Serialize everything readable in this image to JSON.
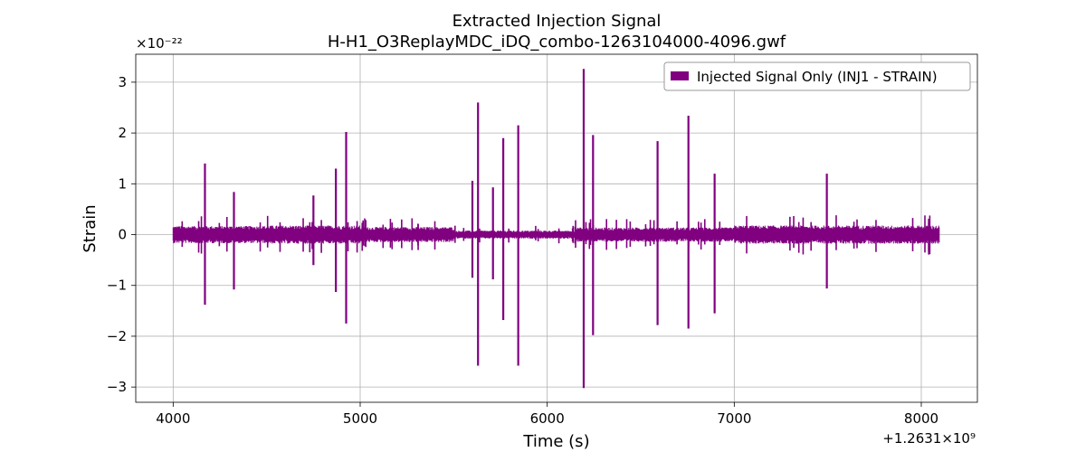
{
  "chart_data": {
    "type": "line",
    "title": "Extracted Injection Signal",
    "subtitle": "H-H1_O3ReplayMDC_iDQ_combo-1263104000-4096.gwf",
    "xlabel": "Time (s)",
    "ylabel": "Strain",
    "x_offset_label": "+1.2631×10⁹",
    "y_multiplier_label": "×10⁻²²",
    "xlim": [
      3800,
      8300
    ],
    "ylim": [
      -3.3,
      3.55
    ],
    "xticks": [
      4000,
      5000,
      6000,
      7000,
      8000
    ],
    "xtick_labels": [
      "4000",
      "5000",
      "6000",
      "7000",
      "8000"
    ],
    "yticks": [
      -3,
      -2,
      -1,
      0,
      1,
      2,
      3
    ],
    "ytick_labels": [
      "−3",
      "−2",
      "−1",
      "0",
      "1",
      "2",
      "3"
    ],
    "grid": true,
    "legend_position": "top-right",
    "series": [
      {
        "name": "Injected Signal Only (INJ1 - STRAIN)",
        "color": "#800080",
        "x_range": [
          4000,
          8096
        ],
        "baseline_envelope": [
          {
            "x_start": 4000,
            "x_end": 4500,
            "amplitude": 0.17
          },
          {
            "x_start": 4500,
            "x_end": 5000,
            "amplitude": 0.18
          },
          {
            "x_start": 5000,
            "x_end": 5500,
            "amplitude": 0.15
          },
          {
            "x_start": 5500,
            "x_end": 6150,
            "amplitude": 0.08
          },
          {
            "x_start": 6150,
            "x_end": 7000,
            "amplitude": 0.14
          },
          {
            "x_start": 7000,
            "x_end": 8096,
            "amplitude": 0.18
          }
        ],
        "spikes": [
          {
            "x": 4170,
            "pos": 1.4,
            "neg": -1.38
          },
          {
            "x": 4325,
            "pos": 0.84,
            "neg": -1.08
          },
          {
            "x": 4750,
            "pos": 0.77,
            "neg": -0.6
          },
          {
            "x": 4870,
            "pos": 1.3,
            "neg": -1.13
          },
          {
            "x": 4925,
            "pos": 2.02,
            "neg": -1.75
          },
          {
            "x": 5600,
            "pos": 1.06,
            "neg": -0.85
          },
          {
            "x": 5630,
            "pos": 2.6,
            "neg": -2.58
          },
          {
            "x": 5710,
            "pos": 0.93,
            "neg": -0.88
          },
          {
            "x": 5765,
            "pos": 1.9,
            "neg": -1.68
          },
          {
            "x": 5845,
            "pos": 2.15,
            "neg": -2.58
          },
          {
            "x": 6195,
            "pos": 3.26,
            "neg": -3.02
          },
          {
            "x": 6245,
            "pos": 1.96,
            "neg": -1.98
          },
          {
            "x": 6590,
            "pos": 1.84,
            "neg": -1.78
          },
          {
            "x": 6755,
            "pos": 2.34,
            "neg": -1.85
          },
          {
            "x": 6895,
            "pos": 1.2,
            "neg": -1.55
          },
          {
            "x": 7495,
            "pos": 1.2,
            "neg": -1.06
          }
        ]
      }
    ]
  }
}
